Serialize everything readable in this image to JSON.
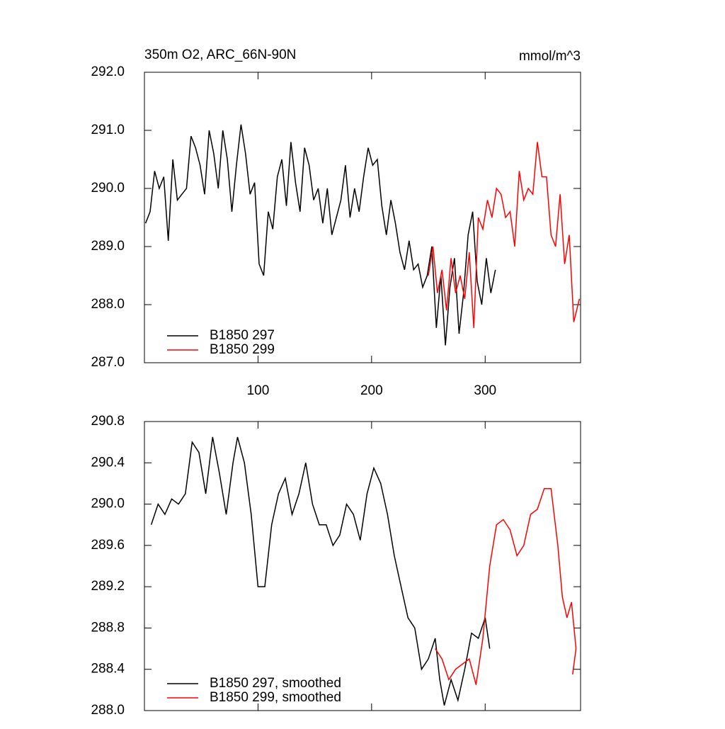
{
  "chart_data": [
    {
      "type": "line",
      "title": "350m O2, ARC_66N-90N",
      "units": "mmol/m^3",
      "xlim": [
        0,
        384
      ],
      "xticks": [
        100,
        200,
        300
      ],
      "ylim": [
        287,
        292
      ],
      "yticks": [
        {
          "value": 287,
          "label": "287.0"
        },
        {
          "value": 288,
          "label": "288.0"
        },
        {
          "value": 289,
          "label": "289.0"
        },
        {
          "value": 290,
          "label": "290.0"
        },
        {
          "value": 291,
          "label": "291.0"
        },
        {
          "value": 292,
          "label": "292.0"
        }
      ],
      "legend": "lower left",
      "series": [
        {
          "name": "B1850 297",
          "color": "#000000",
          "x": [
            1,
            5,
            9,
            13,
            17,
            21,
            25,
            29,
            33,
            37,
            41,
            45,
            49,
            53,
            57,
            61,
            65,
            69,
            73,
            77,
            81,
            85,
            89,
            93,
            97,
            101,
            105,
            109,
            113,
            117,
            121,
            125,
            129,
            133,
            137,
            141,
            145,
            149,
            153,
            157,
            161,
            165,
            169,
            173,
            177,
            181,
            185,
            189,
            193,
            197,
            201,
            205,
            209,
            213,
            217,
            221,
            225,
            229,
            233,
            237,
            241,
            245,
            249,
            253,
            257,
            261,
            265,
            269,
            273,
            277,
            281,
            285,
            289,
            293,
            297,
            301,
            305,
            309
          ],
          "values": [
            289.4,
            289.6,
            290.3,
            290.0,
            290.2,
            289.1,
            290.5,
            289.8,
            289.9,
            290.0,
            290.9,
            290.7,
            290.4,
            289.9,
            291.0,
            290.6,
            290.0,
            291.0,
            290.5,
            289.6,
            290.4,
            291.1,
            290.6,
            289.9,
            290.1,
            288.7,
            288.5,
            289.6,
            289.3,
            290.2,
            290.5,
            289.7,
            290.8,
            290.1,
            289.6,
            290.7,
            290.4,
            289.8,
            290.0,
            289.4,
            290.0,
            289.2,
            289.5,
            289.8,
            290.4,
            289.5,
            290.0,
            289.6,
            290.2,
            290.7,
            290.4,
            290.5,
            289.7,
            289.2,
            289.8,
            289.4,
            288.9,
            288.6,
            289.1,
            288.6,
            288.7,
            288.3,
            288.5,
            289.0,
            287.6,
            288.5,
            287.3,
            288.3,
            288.8,
            287.5,
            288.2,
            289.2,
            289.6,
            288.4,
            288.0,
            288.8,
            288.2,
            288.6
          ]
        },
        {
          "name": "B1850 299",
          "color": "#ff0000",
          "x": [
            250,
            254,
            258,
            262,
            266,
            270,
            274,
            278,
            282,
            286,
            290,
            294,
            298,
            302,
            306,
            310,
            314,
            318,
            322,
            326,
            330,
            334,
            338,
            342,
            346,
            350,
            354,
            358,
            362,
            366,
            370,
            374,
            378,
            383
          ],
          "values": [
            288.5,
            289.0,
            288.2,
            288.6,
            287.9,
            288.8,
            288.2,
            288.5,
            288.1,
            288.9,
            287.6,
            289.5,
            289.3,
            289.8,
            289.5,
            290.0,
            289.9,
            289.5,
            289.6,
            289.0,
            290.3,
            289.8,
            290.0,
            289.9,
            290.8,
            290.2,
            290.2,
            289.2,
            289.0,
            289.9,
            288.7,
            289.2,
            287.7,
            288.1
          ]
        }
      ]
    },
    {
      "type": "line",
      "xlim": [
        0,
        384
      ],
      "xticks": [
        100,
        200,
        300
      ],
      "ylim": [
        288,
        290.8
      ],
      "yticks": [
        {
          "value": 288,
          "label": "288.0"
        },
        288.4,
        288.8,
        289.2,
        289.6,
        {
          "value": 290,
          "label": "290.0"
        },
        290.4,
        290.8
      ],
      "legend": "lower left",
      "series": [
        {
          "name": "B1850 297, smoothed",
          "color": "#000000",
          "x": [
            6,
            12,
            18,
            24,
            30,
            36,
            42,
            48,
            54,
            60,
            66,
            72,
            78,
            82,
            88,
            94,
            100,
            106,
            112,
            118,
            124,
            130,
            136,
            142,
            148,
            154,
            160,
            166,
            172,
            178,
            184,
            190,
            196,
            202,
            208,
            214,
            220,
            226,
            232,
            238,
            244,
            250,
            256,
            260,
            264,
            270,
            276,
            282,
            288,
            294,
            300,
            304
          ],
          "values": [
            289.8,
            290.0,
            289.9,
            290.05,
            290.0,
            290.1,
            290.6,
            290.5,
            290.1,
            290.65,
            290.3,
            289.9,
            290.4,
            290.65,
            290.4,
            289.9,
            289.2,
            289.2,
            289.8,
            290.1,
            290.25,
            289.9,
            290.1,
            290.4,
            290.0,
            289.8,
            289.8,
            289.6,
            289.7,
            290.0,
            289.9,
            289.65,
            290.1,
            290.35,
            290.2,
            289.9,
            289.5,
            289.2,
            288.9,
            288.8,
            288.4,
            288.5,
            288.7,
            288.3,
            288.05,
            288.3,
            288.1,
            288.4,
            288.75,
            288.7,
            288.9,
            288.6
          ]
        },
        {
          "name": "B1850 299, smoothed",
          "color": "#ff0000",
          "x": [
            256,
            262,
            268,
            274,
            280,
            286,
            292,
            298,
            304,
            310,
            316,
            322,
            328,
            334,
            340,
            346,
            352,
            358,
            364,
            368,
            372,
            376,
            380,
            377
          ],
          "values": [
            288.6,
            288.5,
            288.3,
            288.4,
            288.45,
            288.5,
            288.25,
            288.7,
            289.4,
            289.8,
            289.85,
            289.75,
            289.5,
            289.6,
            289.9,
            289.95,
            290.15,
            290.15,
            289.6,
            289.1,
            288.9,
            289.05,
            288.6,
            288.35
          ]
        }
      ]
    }
  ]
}
